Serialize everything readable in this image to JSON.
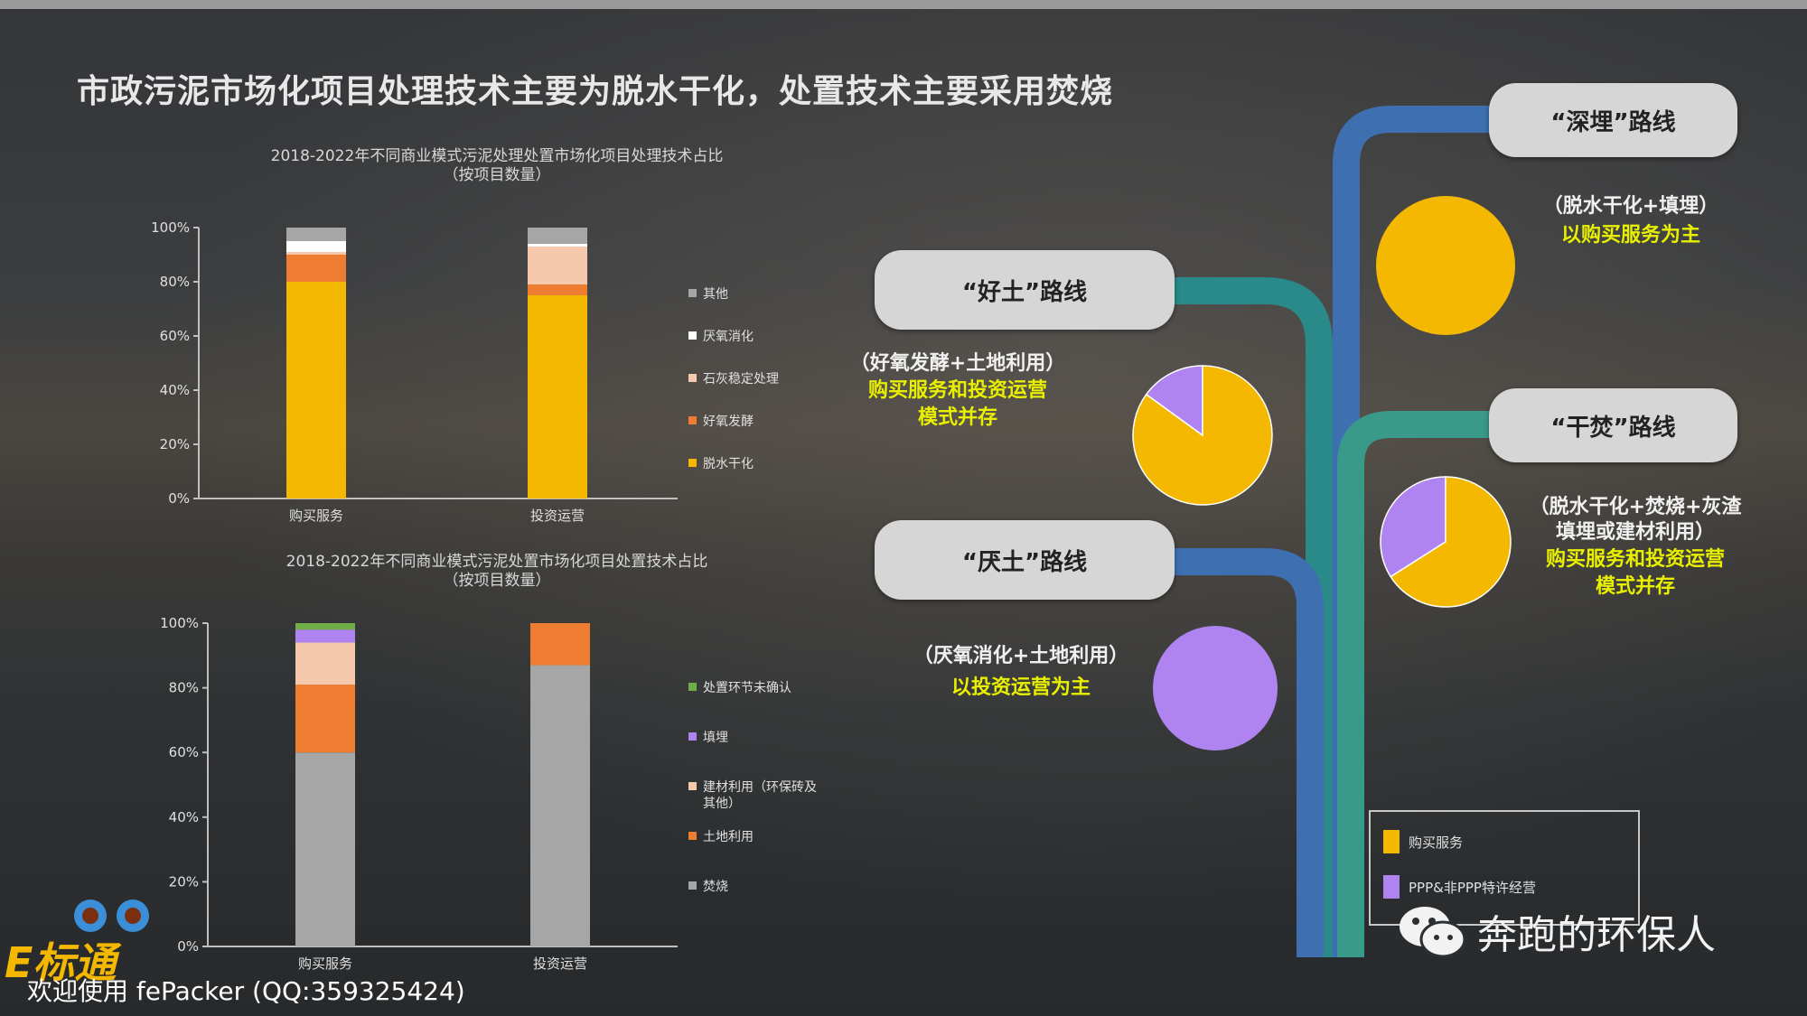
{
  "title": "市政污泥市场化项目处理技术主要为脱水干化，处置技术主要采用焚烧",
  "colors": {
    "yellow": "#f5b800",
    "orange": "#ee7d31",
    "peach": "#f7c9ac",
    "white": "#e8e8e8",
    "grey": "#a6a6a6",
    "purple": "#b084f0",
    "green": "#70ad47",
    "teal": "#2a8a8a",
    "blue": "#3e6fb0",
    "road_teal2": "#3a9a8a"
  },
  "chart_data": [
    {
      "type": "bar",
      "stacked": true,
      "title": "2018-2022年不同商业模式污泥处理处置市场化项目处理技术占比\n（按项目数量）",
      "categories": [
        "购买服务",
        "投资运营"
      ],
      "yticks": [
        "0%",
        "20%",
        "40%",
        "60%",
        "80%",
        "100%"
      ],
      "ylim": [
        0,
        100
      ],
      "series": [
        {
          "name": "脱水干化",
          "color": "#f5b800",
          "values": [
            80,
            75
          ]
        },
        {
          "name": "好氧发酵",
          "color": "#ee7d31",
          "values": [
            10,
            4
          ]
        },
        {
          "name": "石灰稳定处理",
          "color": "#f7c9ac",
          "values": [
            1,
            14
          ]
        },
        {
          "name": "厌氧消化",
          "color": "#ffffff",
          "values": [
            4,
            1
          ]
        },
        {
          "name": "其他",
          "color": "#a6a6a6",
          "values": [
            5,
            6
          ]
        }
      ],
      "legend_order": [
        "其他",
        "厌氧消化",
        "石灰稳定处理",
        "好氧发酵",
        "脱水干化"
      ]
    },
    {
      "type": "bar",
      "stacked": true,
      "title": "2018-2022年不同商业模式污泥处置市场化项目处置技术占比\n（按项目数量）",
      "categories": [
        "购买服务",
        "投资运营"
      ],
      "yticks": [
        "0%",
        "20%",
        "40%",
        "60%",
        "80%",
        "100%"
      ],
      "ylim": [
        0,
        100
      ],
      "series": [
        {
          "name": "焚烧",
          "color": "#a6a6a6",
          "values": [
            60,
            87
          ]
        },
        {
          "name": "土地利用",
          "color": "#ee7d31",
          "values": [
            21,
            13
          ]
        },
        {
          "name": "建材利用（环保砖及其他）",
          "color": "#f7c9ac",
          "values": [
            13,
            0
          ]
        },
        {
          "name": "填埋",
          "color": "#b084f0",
          "values": [
            4,
            0
          ]
        },
        {
          "name": "处置环节未确认",
          "color": "#70ad47",
          "values": [
            2,
            0
          ]
        }
      ],
      "legend_order": [
        "处置环节未确认",
        "填埋",
        "建材利用（环保砖及其他）",
        "土地利用",
        "焚烧"
      ]
    },
    {
      "type": "pie",
      "route": "“深埋”路线",
      "slices": [
        {
          "name": "购买服务",
          "value": 100,
          "color": "#f5b800"
        }
      ]
    },
    {
      "type": "pie",
      "route": "“好土”路线",
      "slices": [
        {
          "name": "购买服务",
          "value": 85,
          "color": "#f5b800"
        },
        {
          "name": "PPP&非PPP特许经营",
          "value": 15,
          "color": "#b084f0"
        }
      ]
    },
    {
      "type": "pie",
      "route": "“干焚”路线",
      "slices": [
        {
          "name": "购买服务",
          "value": 66,
          "color": "#f5b800"
        },
        {
          "name": "PPP&非PPP特许经营",
          "value": 34,
          "color": "#b084f0"
        }
      ]
    },
    {
      "type": "pie",
      "route": "“厌土”路线",
      "slices": [
        {
          "name": "PPP&非PPP特许经营",
          "value": 100,
          "color": "#b084f0"
        }
      ]
    }
  ],
  "routes": {
    "deep": {
      "name": "“深埋”路线",
      "line1": "（脱水干化+填埋）",
      "line2": "以购买服务为主"
    },
    "good": {
      "name": "“好土”路线",
      "line1": "（好氧发酵+土地利用）",
      "line2": "购买服务和投资运营",
      "line3": "模式并存"
    },
    "dry": {
      "name": "“干焚”路线",
      "line1": "（脱水干化+焚烧+灰渣",
      "line2": "填埋或建材利用）",
      "line3": "购买服务和投资运营",
      "line4": "模式并存"
    },
    "anaerobic": {
      "name": "“厌土”路线",
      "line1": "（厌氧消化+土地利用）",
      "line2": "以投资运营为主"
    }
  },
  "pie_legend": [
    {
      "name": "购买服务",
      "color": "#f5b800"
    },
    {
      "name": "PPP&非PPP特许经营",
      "color": "#b084f0"
    }
  ],
  "watermark": "奔跑的环保人",
  "logo": "E标通",
  "footer": "欢迎使用 fePacker (QQ:359325424)"
}
